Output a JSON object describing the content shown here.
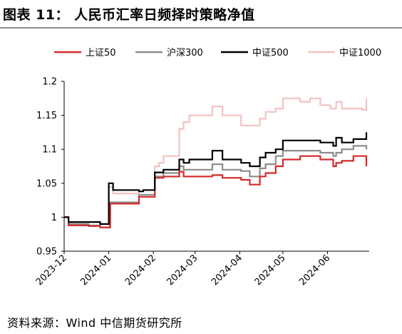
{
  "figure": {
    "title": "图表 11：   人民币汇率日频择时策略净值",
    "source": "资料来源：Wind   中信期货研究所"
  },
  "chart_data": {
    "type": "line",
    "title": "",
    "xlabel": "",
    "ylabel": "",
    "x_start": "2023-12-01",
    "x_end": "2024-06-30",
    "ylim": [
      0.95,
      1.2
    ],
    "yticks": [
      0.95,
      1.0,
      1.05,
      1.1,
      1.15,
      1.2
    ],
    "ytick_labels": [
      "0.95",
      "1",
      "1.05",
      "1.1",
      "1.15",
      "1.2"
    ],
    "xtick_labels": [
      "2023-12",
      "2024-01",
      "2024-02",
      "2024-03",
      "2024-04",
      "2024-05",
      "2024-06"
    ],
    "xtick_dates": [
      "2023-12-01",
      "2024-01-01",
      "2024-02-01",
      "2024-03-01",
      "2024-04-01",
      "2024-05-01",
      "2024-06-01"
    ],
    "grid": false,
    "legend_position": "top",
    "series": [
      {
        "name": "上证50",
        "color": "#d42a2a",
        "x": [
          "2023-12-01",
          "2023-12-04",
          "2023-12-18",
          "2023-12-26",
          "2023-12-29",
          "2024-01-02",
          "2024-01-09",
          "2024-01-22",
          "2024-02-02",
          "2024-02-05",
          "2024-02-08",
          "2024-02-19",
          "2024-02-22",
          "2024-02-26",
          "2024-03-13",
          "2024-03-20",
          "2024-04-02",
          "2024-04-08",
          "2024-04-15",
          "2024-04-19",
          "2024-04-26",
          "2024-05-01",
          "2024-05-13",
          "2024-05-20",
          "2024-05-27",
          "2024-06-03",
          "2024-06-05",
          "2024-06-07",
          "2024-06-11",
          "2024-06-19",
          "2024-06-25",
          "2024-06-28"
        ],
        "values": [
          1.0,
          0.988,
          0.987,
          0.985,
          0.985,
          1.02,
          1.02,
          1.03,
          1.058,
          1.058,
          1.06,
          1.067,
          1.06,
          1.06,
          1.062,
          1.058,
          1.055,
          1.048,
          1.06,
          1.065,
          1.075,
          1.085,
          1.09,
          1.09,
          1.085,
          1.085,
          1.075,
          1.08,
          1.083,
          1.09,
          1.09,
          1.075
        ]
      },
      {
        "name": "沪深300",
        "color": "#8c8c8c",
        "x": [
          "2023-12-01",
          "2023-12-04",
          "2023-12-18",
          "2023-12-26",
          "2023-12-29",
          "2024-01-02",
          "2024-01-09",
          "2024-01-22",
          "2024-02-02",
          "2024-02-05",
          "2024-02-08",
          "2024-02-19",
          "2024-02-22",
          "2024-02-26",
          "2024-03-13",
          "2024-03-20",
          "2024-04-02",
          "2024-04-08",
          "2024-04-15",
          "2024-04-19",
          "2024-04-26",
          "2024-05-01",
          "2024-05-13",
          "2024-05-20",
          "2024-05-27",
          "2024-06-03",
          "2024-06-05",
          "2024-06-07",
          "2024-06-11",
          "2024-06-19",
          "2024-06-25",
          "2024-06-28"
        ],
        "values": [
          1.0,
          0.99,
          0.988,
          0.985,
          0.985,
          1.022,
          1.022,
          1.033,
          1.06,
          1.06,
          1.065,
          1.075,
          1.07,
          1.07,
          1.078,
          1.07,
          1.068,
          1.06,
          1.072,
          1.078,
          1.09,
          1.098,
          1.098,
          1.098,
          1.095,
          1.095,
          1.09,
          1.095,
          1.1,
          1.105,
          1.105,
          1.1
        ]
      },
      {
        "name": "中证500",
        "color": "#000000",
        "x": [
          "2023-12-01",
          "2023-12-04",
          "2023-12-18",
          "2023-12-26",
          "2023-12-29",
          "2024-01-01",
          "2024-01-04",
          "2024-01-09",
          "2024-01-22",
          "2024-01-25",
          "2024-02-02",
          "2024-02-05",
          "2024-02-08",
          "2024-02-19",
          "2024-02-22",
          "2024-02-26",
          "2024-03-13",
          "2024-03-20",
          "2024-04-02",
          "2024-04-08",
          "2024-04-15",
          "2024-04-19",
          "2024-04-26",
          "2024-05-01",
          "2024-05-13",
          "2024-05-20",
          "2024-05-27",
          "2024-06-03",
          "2024-06-05",
          "2024-06-07",
          "2024-06-11",
          "2024-06-19",
          "2024-06-25",
          "2024-06-28"
        ],
        "values": [
          1.0,
          0.993,
          0.993,
          0.99,
          0.99,
          1.05,
          1.04,
          1.04,
          1.038,
          1.04,
          1.066,
          1.066,
          1.07,
          1.085,
          1.08,
          1.085,
          1.098,
          1.085,
          1.08,
          1.075,
          1.088,
          1.095,
          1.1,
          1.113,
          1.113,
          1.113,
          1.11,
          1.11,
          1.105,
          1.117,
          1.11,
          1.115,
          1.115,
          1.125
        ]
      },
      {
        "name": "中证1000",
        "color": "#f3c2c2",
        "x": [
          "2023-12-01",
          "2023-12-04",
          "2023-12-18",
          "2023-12-26",
          "2023-12-29",
          "2024-01-01",
          "2024-01-04",
          "2024-01-09",
          "2024-01-22",
          "2024-01-25",
          "2024-02-02",
          "2024-02-05",
          "2024-02-08",
          "2024-02-19",
          "2024-02-22",
          "2024-02-26",
          "2024-03-13",
          "2024-03-20",
          "2024-04-02",
          "2024-04-08",
          "2024-04-15",
          "2024-04-19",
          "2024-04-26",
          "2024-05-01",
          "2024-05-13",
          "2024-05-20",
          "2024-05-27",
          "2024-06-03",
          "2024-06-05",
          "2024-06-07",
          "2024-06-11",
          "2024-06-19",
          "2024-06-25",
          "2024-06-28"
        ],
        "values": [
          1.0,
          0.988,
          0.987,
          0.985,
          0.985,
          1.045,
          1.035,
          1.035,
          1.038,
          1.04,
          1.075,
          1.08,
          1.09,
          1.13,
          1.14,
          1.15,
          1.163,
          1.15,
          1.135,
          1.135,
          1.145,
          1.155,
          1.16,
          1.175,
          1.17,
          1.175,
          1.165,
          1.16,
          1.16,
          1.17,
          1.16,
          1.16,
          1.158,
          1.175
        ]
      }
    ]
  }
}
